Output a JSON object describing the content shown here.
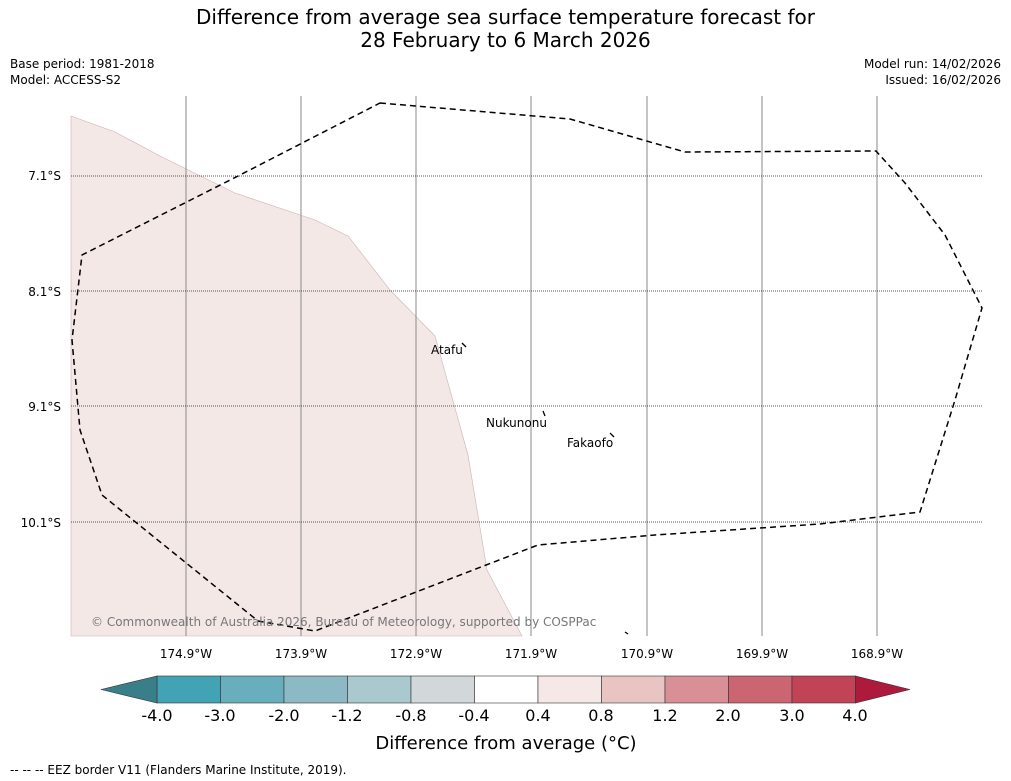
{
  "title": {
    "line1": "Difference from average sea surface temperature forecast for",
    "line2": "28 February to 6 March 2026"
  },
  "meta": {
    "base_period": "Base period: 1981-2018",
    "model": "Model: ACCESS-S2",
    "model_run": "Model run: 14/02/2026",
    "issued": "Issued: 16/02/2026"
  },
  "map": {
    "latitude_labels": [
      "7.1°S",
      "8.1°S",
      "9.1°S",
      "10.1°S"
    ],
    "longitude_labels": [
      "174.9°W",
      "173.9°W",
      "172.9°W",
      "171.9°W",
      "170.9°W",
      "169.9°W",
      "168.9°W"
    ],
    "places": [
      "Atafu",
      "Nukunonu",
      "Fakaofo"
    ],
    "anomaly_region_color": "#f4e8e7",
    "copyright": "© Commonwealth of Australia 2026, Bureau of Meteorology, supported by COSPPac"
  },
  "colorbar": {
    "title": "Difference from average (°C)",
    "tick_labels": [
      "-4.0",
      "-3.0",
      "-2.0",
      "-1.2",
      "-0.8",
      "-0.4",
      "0.4",
      "0.8",
      "1.2",
      "2.0",
      "3.0",
      "4.0"
    ],
    "colors": [
      "#42a3b4",
      "#68aebd",
      "#8bbac4",
      "#a9c9ce",
      "#d2d7d9",
      "#ffffff",
      "#f5e8e7",
      "#e8c5c2",
      "#d88f96",
      "#cb6572",
      "#c04456"
    ],
    "low_extend_color": "#387f89",
    "high_extend_color": "#ae1a3c"
  },
  "footnote": "--  --  -- EEZ border V11 (Flanders Marine Institute, 2019)."
}
